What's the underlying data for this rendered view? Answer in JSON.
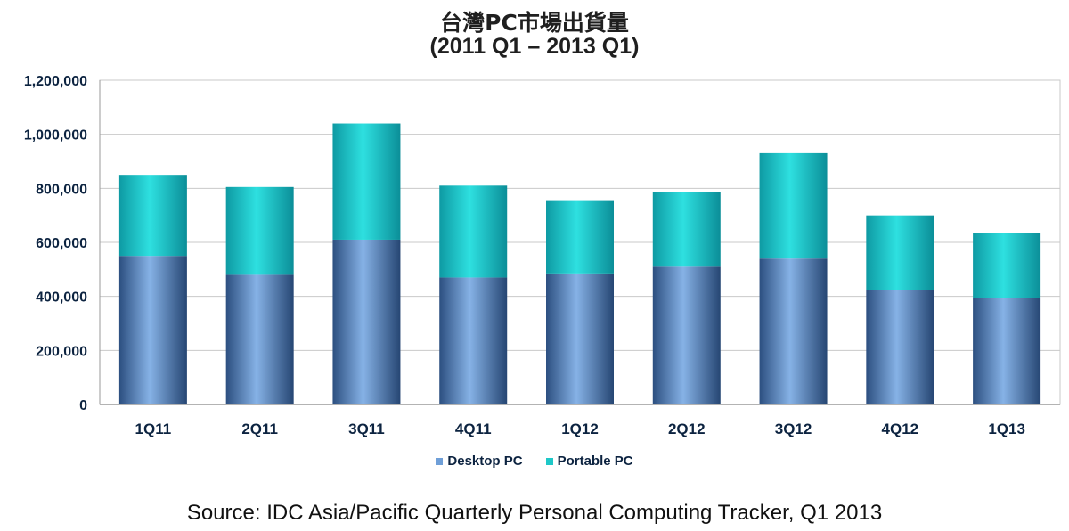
{
  "chart_data": {
    "type": "bar",
    "stacked": true,
    "title": "台灣PC市場出貨量",
    "subtitle": "(2011 Q1 – 2013 Q1)",
    "categories": [
      "1Q11",
      "2Q11",
      "3Q11",
      "4Q11",
      "1Q12",
      "2Q12",
      "3Q12",
      "4Q12",
      "1Q13"
    ],
    "series": [
      {
        "name": "Desktop PC",
        "color": "#6f9fd8",
        "values": [
          550000,
          480000,
          610000,
          470000,
          485000,
          510000,
          540000,
          425000,
          395000
        ]
      },
      {
        "name": "Portable PC",
        "color": "#1ec8c8",
        "values": [
          300000,
          325000,
          430000,
          340000,
          268000,
          275000,
          390000,
          275000,
          240000
        ]
      }
    ],
    "ylim": [
      0,
      1200000
    ],
    "yticks": [
      "0",
      "200,000",
      "400,000",
      "600,000",
      "800,000",
      "1,000,000",
      "1,200,000"
    ],
    "grid": true,
    "legend_position": "bottom"
  },
  "source": "Source: IDC Asia/Pacific Quarterly Personal Computing Tracker, Q1 2013"
}
